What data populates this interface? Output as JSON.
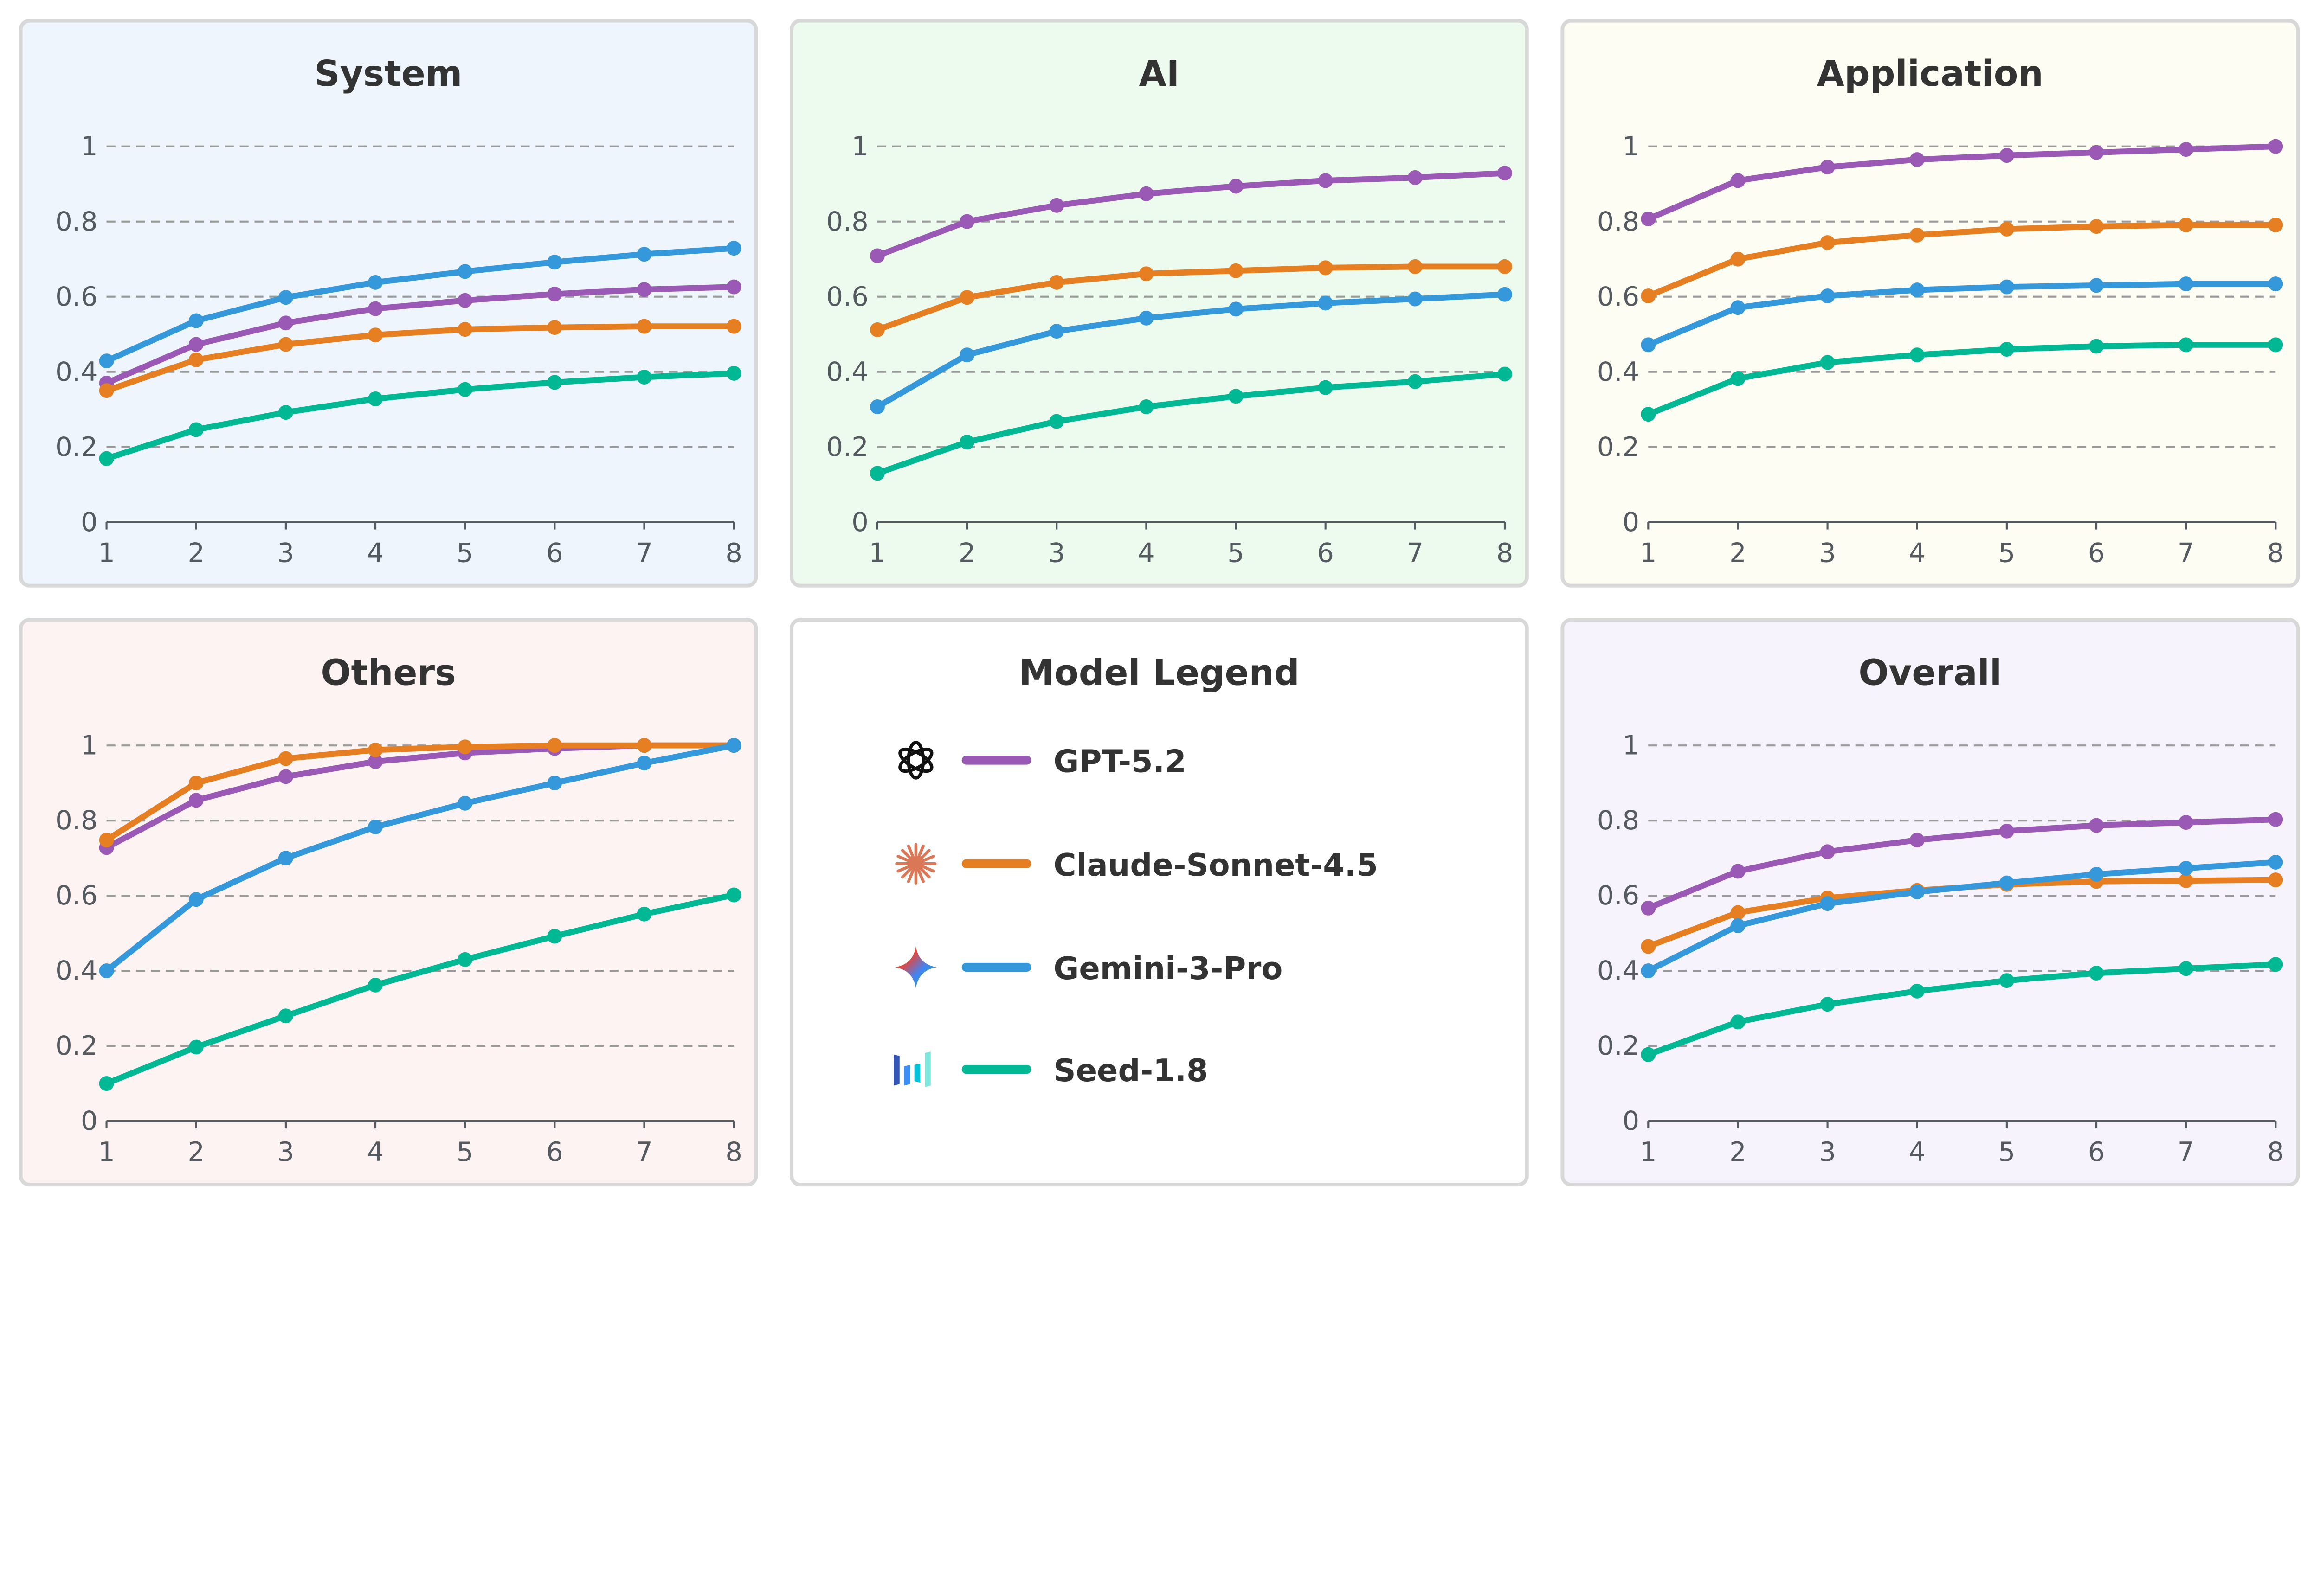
{
  "x_ticks": [
    "1",
    "2",
    "3",
    "4",
    "5",
    "6",
    "7",
    "8"
  ],
  "y_ticks": [
    "0",
    "0.2",
    "0.4",
    "0.6",
    "0.8",
    "1"
  ],
  "series_colors": {
    "GPT-5.2": "#9b59b6",
    "Claude-Sonnet-4.5": "#e67e22",
    "Gemini-3-Pro": "#3498db",
    "Seed-1.8": "#00b894"
  },
  "legend": {
    "title": "Model Legend",
    "items": [
      {
        "label": "GPT-5.2",
        "icon": "openai-logo-icon",
        "color": "#9b59b6"
      },
      {
        "label": "Claude-Sonnet-4.5",
        "icon": "claude-logo-icon",
        "color": "#e67e22"
      },
      {
        "label": "Gemini-3-Pro",
        "icon": "gemini-logo-icon",
        "color": "#3498db"
      },
      {
        "label": "Seed-1.8",
        "icon": "seed-logo-icon",
        "color": "#00b894"
      }
    ]
  },
  "chart_data": [
    {
      "type": "line",
      "title": "System",
      "background": "#eef5fd",
      "x": [
        1,
        2,
        3,
        4,
        5,
        6,
        7,
        8
      ],
      "ylim": [
        0,
        1
      ],
      "grid": true,
      "series": [
        {
          "name": "GPT-5.2",
          "values": [
            0.37,
            0.473,
            0.53,
            0.568,
            0.59,
            0.607,
            0.619,
            0.626
          ]
        },
        {
          "name": "Claude-Sonnet-4.5",
          "values": [
            0.35,
            0.432,
            0.473,
            0.498,
            0.513,
            0.518,
            0.521,
            0.521
          ]
        },
        {
          "name": "Gemini-3-Pro",
          "values": [
            0.429,
            0.536,
            0.598,
            0.638,
            0.667,
            0.692,
            0.713,
            0.729
          ]
        },
        {
          "name": "Seed-1.8",
          "values": [
            0.169,
            0.246,
            0.292,
            0.328,
            0.353,
            0.372,
            0.386,
            0.396
          ]
        }
      ]
    },
    {
      "type": "line",
      "title": "AI",
      "background": "#edfbef",
      "x": [
        1,
        2,
        3,
        4,
        5,
        6,
        7,
        8
      ],
      "ylim": [
        0,
        1
      ],
      "grid": true,
      "series": [
        {
          "name": "GPT-5.2",
          "values": [
            0.709,
            0.8,
            0.843,
            0.874,
            0.894,
            0.909,
            0.917,
            0.929
          ]
        },
        {
          "name": "Claude-Sonnet-4.5",
          "values": [
            0.512,
            0.598,
            0.638,
            0.661,
            0.669,
            0.677,
            0.68,
            0.68
          ]
        },
        {
          "name": "Gemini-3-Pro",
          "values": [
            0.307,
            0.445,
            0.508,
            0.543,
            0.567,
            0.583,
            0.594,
            0.606
          ]
        },
        {
          "name": "Seed-1.8",
          "values": [
            0.13,
            0.213,
            0.268,
            0.307,
            0.335,
            0.358,
            0.374,
            0.394
          ]
        }
      ]
    },
    {
      "type": "line",
      "title": "Application",
      "background": "#fdfdf3",
      "x": [
        1,
        2,
        3,
        4,
        5,
        6,
        7,
        8
      ],
      "ylim": [
        0,
        1
      ],
      "grid": true,
      "series": [
        {
          "name": "GPT-5.2",
          "values": [
            0.807,
            0.909,
            0.945,
            0.965,
            0.976,
            0.984,
            0.992,
            1.0
          ]
        },
        {
          "name": "Claude-Sonnet-4.5",
          "values": [
            0.602,
            0.7,
            0.744,
            0.764,
            0.78,
            0.787,
            0.791,
            0.791
          ]
        },
        {
          "name": "Gemini-3-Pro",
          "values": [
            0.472,
            0.571,
            0.602,
            0.618,
            0.626,
            0.63,
            0.634,
            0.634
          ]
        },
        {
          "name": "Seed-1.8",
          "values": [
            0.287,
            0.382,
            0.425,
            0.445,
            0.46,
            0.468,
            0.472,
            0.472
          ]
        }
      ]
    },
    {
      "type": "line",
      "title": "Others",
      "background": "#fdf3f3",
      "x": [
        1,
        2,
        3,
        4,
        5,
        6,
        7,
        8
      ],
      "ylim": [
        0,
        1
      ],
      "grid": true,
      "series": [
        {
          "name": "GPT-5.2",
          "values": [
            0.728,
            0.854,
            0.917,
            0.957,
            0.98,
            0.992,
            1.0,
            1.0
          ]
        },
        {
          "name": "Claude-Sonnet-4.5",
          "values": [
            0.748,
            0.9,
            0.965,
            0.988,
            0.996,
            1.0,
            1.0,
            1.0
          ]
        },
        {
          "name": "Gemini-3-Pro",
          "values": [
            0.4,
            0.59,
            0.7,
            0.783,
            0.846,
            0.9,
            0.953,
            1.0
          ]
        },
        {
          "name": "Seed-1.8",
          "values": [
            0.1,
            0.197,
            0.28,
            0.362,
            0.43,
            0.492,
            0.551,
            0.602
          ]
        }
      ]
    },
    {
      "type": "line",
      "title": "Overall",
      "background": "#f6f3fd",
      "x": [
        1,
        2,
        3,
        4,
        5,
        6,
        7,
        8
      ],
      "ylim": [
        0,
        1
      ],
      "grid": true,
      "series": [
        {
          "name": "GPT-5.2",
          "values": [
            0.567,
            0.665,
            0.717,
            0.748,
            0.772,
            0.787,
            0.795,
            0.803
          ]
        },
        {
          "name": "Claude-Sonnet-4.5",
          "values": [
            0.465,
            0.555,
            0.594,
            0.614,
            0.63,
            0.638,
            0.64,
            0.642
          ]
        },
        {
          "name": "Gemini-3-Pro",
          "values": [
            0.4,
            0.52,
            0.579,
            0.61,
            0.634,
            0.657,
            0.673,
            0.689
          ]
        },
        {
          "name": "Seed-1.8",
          "values": [
            0.177,
            0.264,
            0.311,
            0.346,
            0.374,
            0.394,
            0.406,
            0.417
          ]
        }
      ]
    }
  ]
}
